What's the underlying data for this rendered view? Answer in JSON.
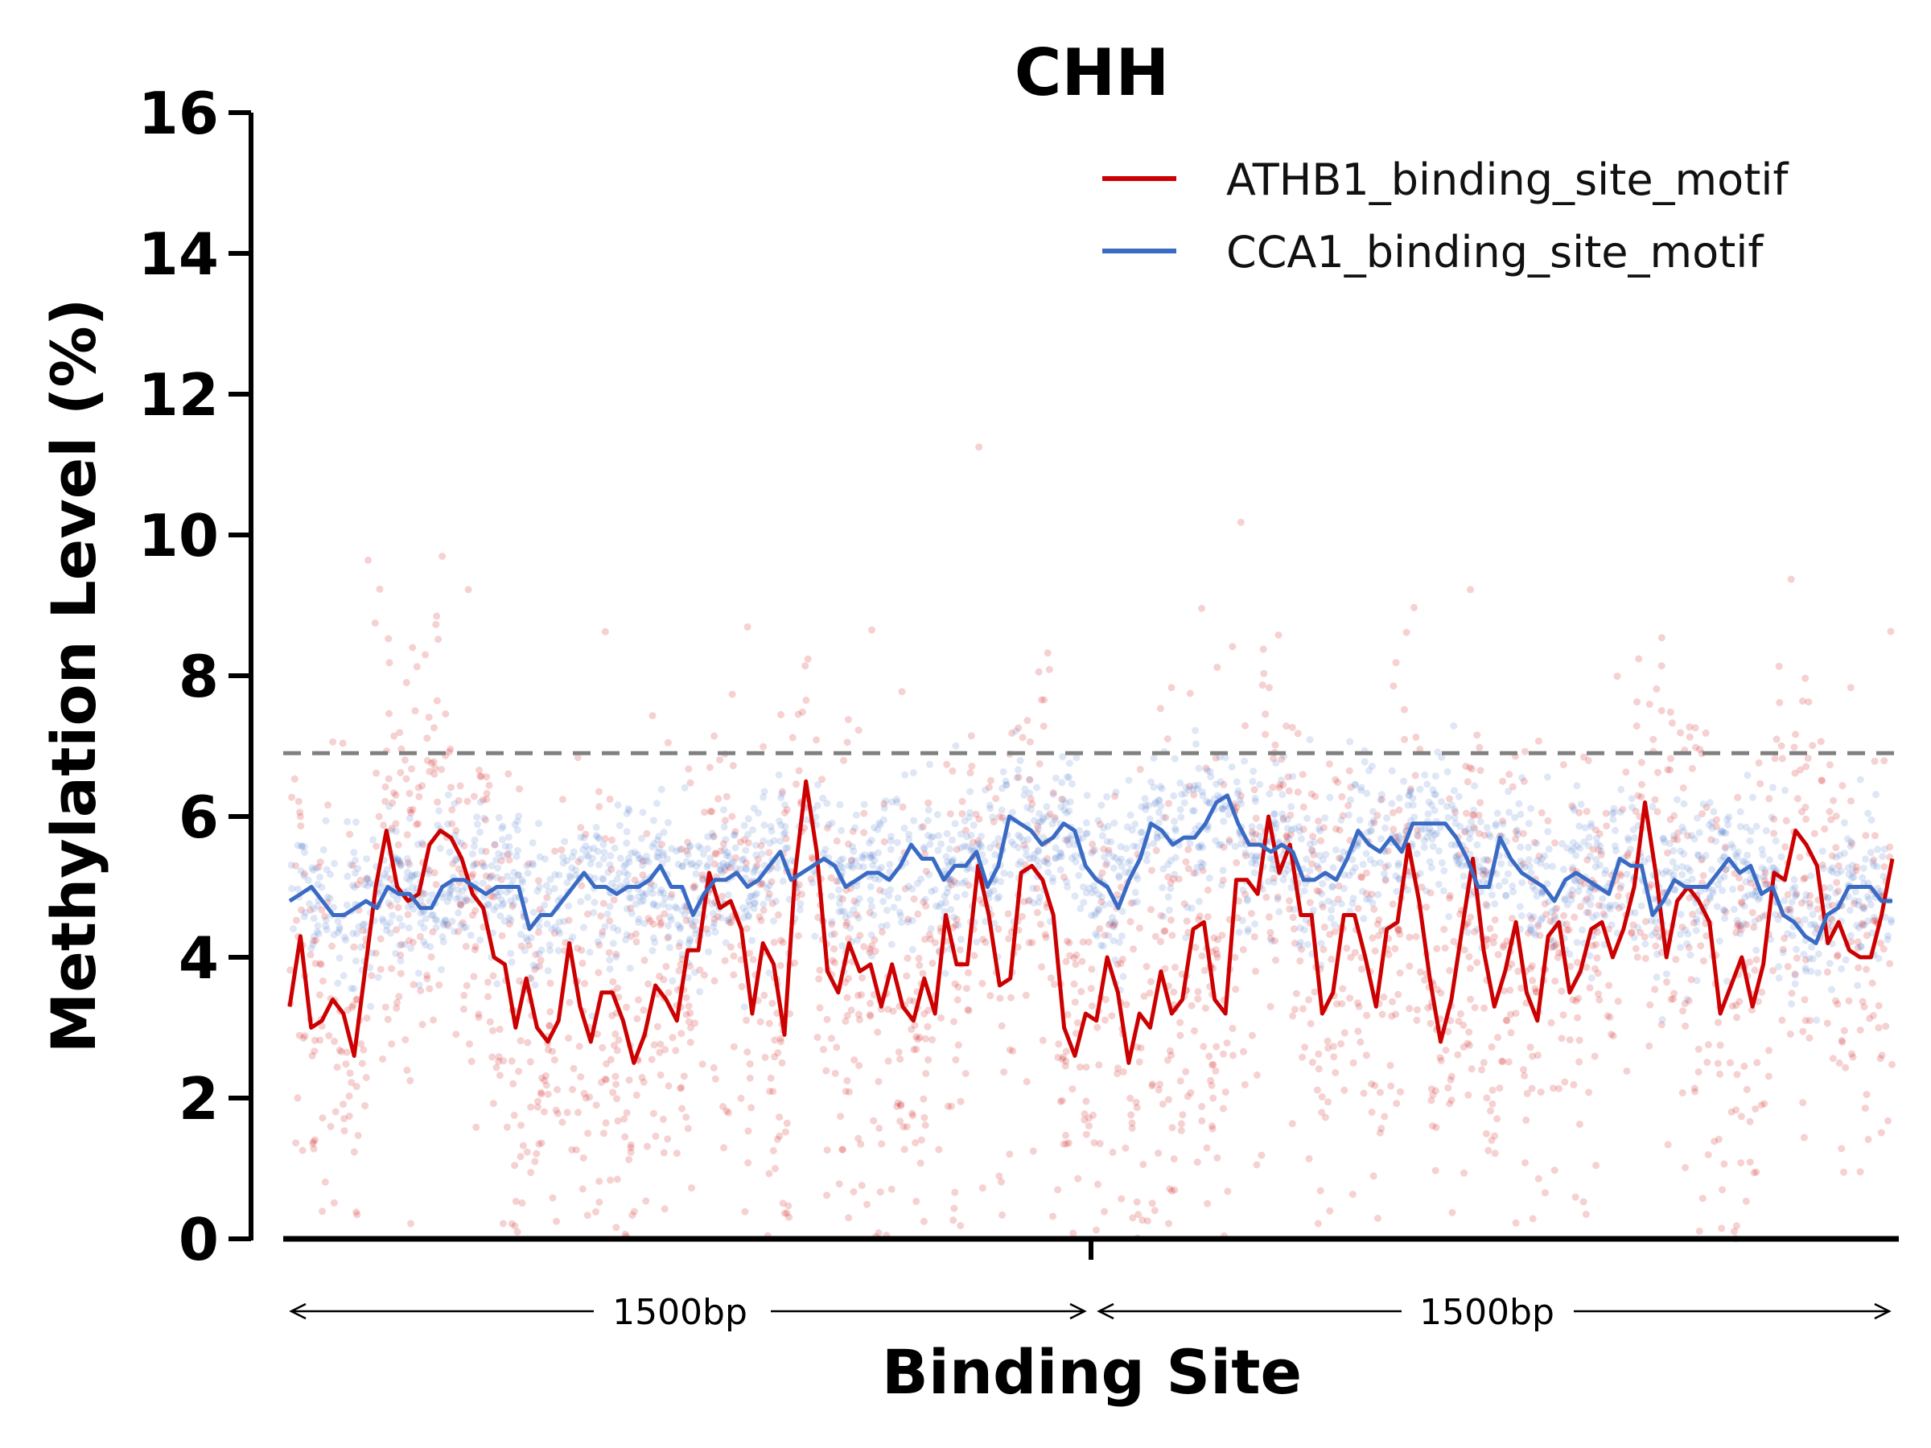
{
  "chart_data": {
    "type": "line",
    "title": "CHH",
    "xlabel": "Binding Site",
    "ylabel": "Methylation Level (%)",
    "ylim": [
      0,
      16
    ],
    "yticks": [
      "0",
      "2",
      "4",
      "6",
      "8",
      "10",
      "12",
      "14",
      "16"
    ],
    "reference_line": {
      "y": 6.9,
      "style": "dashed",
      "color": "#808080"
    },
    "spans": [
      {
        "label": "1500bp"
      },
      {
        "label": "1500bp"
      }
    ],
    "legend": {
      "position": "top-right"
    },
    "grid": false,
    "series": [
      {
        "name": "ATHB1_binding_site_motif",
        "color": "#cc0000",
        "values": [
          3.3,
          4.3,
          3.0,
          3.1,
          3.4,
          3.2,
          2.6,
          3.8,
          5.0,
          5.8,
          5.0,
          4.8,
          4.9,
          5.6,
          5.8,
          5.7,
          5.4,
          4.9,
          4.7,
          4.0,
          3.9,
          3.0,
          3.7,
          3.0,
          2.8,
          3.1,
          4.2,
          3.3,
          2.8,
          3.5,
          3.5,
          3.1,
          2.5,
          2.9,
          3.6,
          3.4,
          3.1,
          4.1,
          4.1,
          5.2,
          4.7,
          4.8,
          4.4,
          3.2,
          4.2,
          3.9,
          2.9,
          5.2,
          6.5,
          5.5,
          3.8,
          3.5,
          4.2,
          3.8,
          3.9,
          3.3,
          3.9,
          3.3,
          3.1,
          3.7,
          3.2,
          4.6,
          3.9,
          3.9,
          5.3,
          4.6,
          3.6,
          3.7,
          5.2,
          5.3,
          5.1,
          4.6,
          3.0,
          2.6,
          3.2,
          3.1,
          4.0,
          3.5,
          2.5,
          3.2,
          3.0,
          3.8,
          3.2,
          3.4,
          4.4,
          4.5,
          3.4,
          3.2,
          5.1,
          5.1,
          4.9,
          6.0,
          5.2,
          5.6,
          4.6,
          4.6,
          3.2,
          3.5,
          4.6,
          4.6,
          4.0,
          3.3,
          4.4,
          4.5,
          5.6,
          4.8,
          3.7,
          2.8,
          3.4,
          4.4,
          5.4,
          4.1,
          3.3,
          3.8,
          4.5,
          3.5,
          3.1,
          4.3,
          4.5,
          3.5,
          3.8,
          4.4,
          4.5,
          4.0,
          4.4,
          5.0,
          6.2,
          5.2,
          4.0,
          4.8,
          5.0,
          4.8,
          4.5,
          3.2,
          3.6,
          4.0,
          3.3,
          3.9,
          5.2,
          5.1,
          5.8,
          5.6,
          5.3,
          4.2,
          4.5,
          4.1,
          4.0,
          4.0,
          4.6,
          5.4
        ]
      },
      {
        "name": "CCA1_binding_site_motif",
        "color": "#3a6bc4",
        "values": [
          4.8,
          4.9,
          5.0,
          4.8,
          4.6,
          4.6,
          4.7,
          4.8,
          4.7,
          5.0,
          4.9,
          4.9,
          4.7,
          4.7,
          5.0,
          5.1,
          5.1,
          5.0,
          4.9,
          5.0,
          5.0,
          5.0,
          4.4,
          4.6,
          4.6,
          4.8,
          5.0,
          5.2,
          5.0,
          5.0,
          4.9,
          5.0,
          5.0,
          5.1,
          5.3,
          5.0,
          5.0,
          4.6,
          4.9,
          5.1,
          5.1,
          5.2,
          5.0,
          5.1,
          5.3,
          5.5,
          5.1,
          5.2,
          5.3,
          5.4,
          5.3,
          5.0,
          5.1,
          5.2,
          5.2,
          5.1,
          5.3,
          5.6,
          5.4,
          5.4,
          5.1,
          5.3,
          5.3,
          5.5,
          5.0,
          5.3,
          6.0,
          5.9,
          5.8,
          5.6,
          5.7,
          5.9,
          5.8,
          5.3,
          5.1,
          5.0,
          4.7,
          5.1,
          5.4,
          5.9,
          5.8,
          5.6,
          5.7,
          5.7,
          5.9,
          6.2,
          6.3,
          5.9,
          5.6,
          5.6,
          5.5,
          5.6,
          5.5,
          5.1,
          5.1,
          5.2,
          5.1,
          5.4,
          5.8,
          5.6,
          5.5,
          5.7,
          5.5,
          5.9,
          5.9,
          5.9,
          5.9,
          5.7,
          5.4,
          5.0,
          5.0,
          5.7,
          5.4,
          5.2,
          5.1,
          5.0,
          4.8,
          5.1,
          5.2,
          5.1,
          5.0,
          4.9,
          5.4,
          5.3,
          5.3,
          4.6,
          4.8,
          5.1,
          5.0,
          5.0,
          5.0,
          5.2,
          5.4,
          5.2,
          5.3,
          4.9,
          5.0,
          4.6,
          4.5,
          4.3,
          4.2,
          4.6,
          4.7,
          5.0,
          5.0,
          5.0,
          4.8,
          4.8
        ]
      }
    ]
  }
}
